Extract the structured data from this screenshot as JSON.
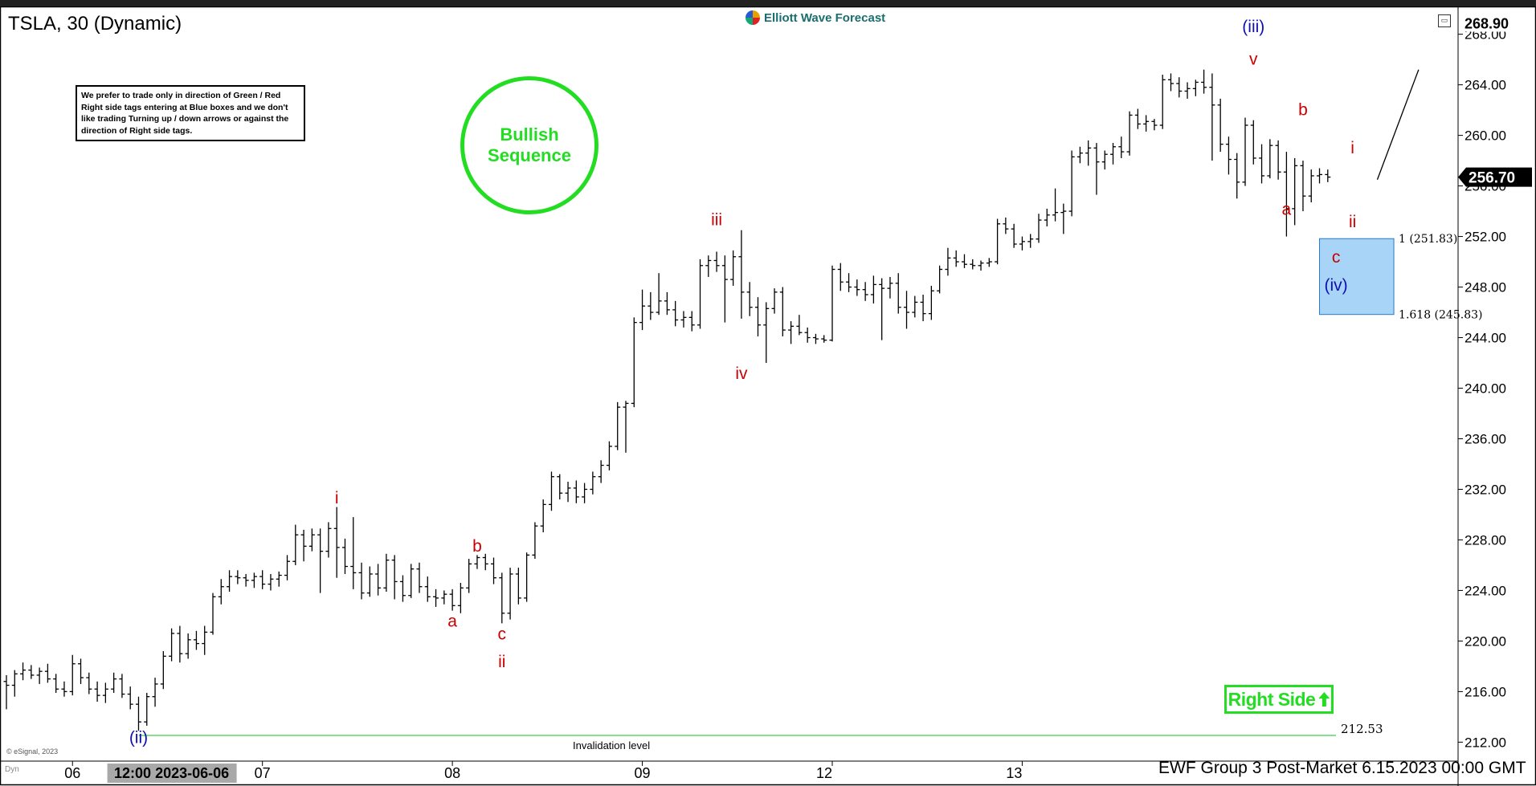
{
  "chart_header": {
    "symbol_title": "TSLA, 30 (Dynamic)",
    "brand": "Elliott Wave Forecast",
    "corner_icon": "restore-icon"
  },
  "notice_box": {
    "text": "We prefer to trade only in direction of Green / Red Right side tags entering at Blue boxes and we don't like trading Turning up / down arrows or against the direction of Right side tags."
  },
  "bullish_badge": {
    "line1": "Bullish",
    "line2": "Sequence",
    "color": "#22dd22"
  },
  "right_side_tag": {
    "label": "Right Side",
    "icon": "arrow-up-icon",
    "color": "#22dd22"
  },
  "footer": {
    "copyright": "© eSignal, 2023",
    "mode": "Dyn",
    "status": "EWF Group 3 Post-Market 6.15.2023 00:00 GMT"
  },
  "chart_data": {
    "type": "ohlc",
    "title": "TSLA, 30 (Dynamic)",
    "ylim": [
      210.5,
      270.2
    ],
    "y_ticks": [
      "212.00",
      "216.00",
      "220.00",
      "224.00",
      "228.00",
      "232.00",
      "236.00",
      "240.00",
      "244.00",
      "248.00",
      "252.00",
      "256.00",
      "260.00",
      "264.00",
      "268.00"
    ],
    "x_ticks": [
      {
        "label": "06",
        "bar": 8
      },
      {
        "label": "07",
        "bar": 31
      },
      {
        "label": "08",
        "bar": 54
      },
      {
        "label": "09",
        "bar": 77
      },
      {
        "label": "12",
        "bar": 100
      },
      {
        "label": "13",
        "bar": 123
      }
    ],
    "x_cursor_label": "12:00 2023-06-06",
    "x_cursor_bar": 20,
    "last_price": "256.70",
    "high_price": "268.90",
    "colors": {
      "bars": "#000000",
      "wave_minor": "#cc0000",
      "wave_major": "#1010b0",
      "invalidation": "#44cc44",
      "box": "#a8d4f8",
      "box_border": "#2a78c8"
    },
    "invalidation": {
      "label": "Invalidation level",
      "value": 212.53,
      "value_label": "212.53"
    },
    "blue_box": {
      "top": 251.83,
      "bottom": 245.83,
      "label_top": "1 (251.83)",
      "label_bottom": "1.618 (245.83)",
      "bar_start": 159,
      "bar_end": 168
    },
    "projection": {
      "from": {
        "bar": 166,
        "value": 256.5
      },
      "to": {
        "bar": 171,
        "value": 265.2
      }
    },
    "wave_labels": [
      {
        "text": "(ii)",
        "bar": 16,
        "value": 213.2,
        "color": "major",
        "pos": "below"
      },
      {
        "text": "i",
        "bar": 40,
        "value": 230.5,
        "color": "minor",
        "pos": "above"
      },
      {
        "text": "a",
        "bar": 54,
        "value": 222.4,
        "color": "minor",
        "pos": "below"
      },
      {
        "text": "b",
        "bar": 57,
        "value": 226.7,
        "color": "minor",
        "pos": "above"
      },
      {
        "text": "c",
        "bar": 60,
        "value": 221.4,
        "color": "minor",
        "pos": "below"
      },
      {
        "text": "ii",
        "bar": 60,
        "value": 219.2,
        "color": "minor",
        "pos": "below"
      },
      {
        "text": "iii",
        "bar": 86,
        "value": 252.5,
        "color": "minor",
        "pos": "above"
      },
      {
        "text": "iv",
        "bar": 89,
        "value": 242.0,
        "color": "minor",
        "pos": "below"
      },
      {
        "text": "v",
        "bar": 151,
        "value": 265.2,
        "color": "minor",
        "pos": "above"
      },
      {
        "text": "(iii)",
        "bar": 151,
        "value": 267.8,
        "color": "major",
        "pos": "above"
      },
      {
        "text": "a",
        "bar": 155,
        "value": 255.0,
        "color": "minor",
        "pos": "below"
      },
      {
        "text": "b",
        "bar": 157,
        "value": 261.2,
        "color": "minor",
        "pos": "above"
      },
      {
        "text": "c",
        "bar": 161,
        "value": 251.2,
        "color": "minor",
        "pos": "below"
      },
      {
        "text": "(iv)",
        "bar": 161,
        "value": 249.0,
        "color": "major",
        "pos": "below"
      },
      {
        "text": "i",
        "bar": 163,
        "value": 258.2,
        "color": "minor",
        "pos": "above"
      },
      {
        "text": "ii",
        "bar": 163,
        "value": 254.0,
        "color": "minor",
        "pos": "below"
      }
    ],
    "ohlc": [
      [
        216.8,
        217.3,
        214.6,
        216.5
      ],
      [
        216.5,
        217.7,
        215.6,
        217.4
      ],
      [
        217.4,
        218.3,
        216.9,
        217.7
      ],
      [
        217.7,
        218.1,
        217.0,
        217.3
      ],
      [
        217.3,
        217.9,
        216.6,
        217.6
      ],
      [
        217.6,
        218.2,
        216.7,
        217.0
      ],
      [
        217.0,
        217.4,
        215.9,
        216.2
      ],
      [
        216.2,
        216.8,
        215.6,
        216.0
      ],
      [
        216.0,
        218.9,
        215.7,
        218.2
      ],
      [
        218.2,
        218.6,
        216.6,
        217.1
      ],
      [
        217.1,
        217.5,
        215.8,
        216.2
      ],
      [
        216.2,
        216.8,
        215.2,
        215.7
      ],
      [
        215.7,
        216.7,
        215.1,
        216.2
      ],
      [
        216.2,
        217.5,
        215.9,
        217.0
      ],
      [
        217.0,
        217.4,
        215.5,
        215.8
      ],
      [
        215.8,
        216.4,
        214.6,
        215.0
      ],
      [
        215.0,
        215.6,
        212.9,
        213.6
      ],
      [
        213.6,
        215.9,
        213.3,
        215.6
      ],
      [
        215.6,
        217.1,
        214.8,
        216.6
      ],
      [
        216.6,
        219.2,
        216.2,
        218.8
      ],
      [
        218.8,
        221.0,
        218.4,
        220.6
      ],
      [
        220.6,
        221.2,
        218.3,
        219.0
      ],
      [
        219.0,
        220.6,
        218.6,
        220.1
      ],
      [
        220.1,
        220.8,
        219.3,
        219.8
      ],
      [
        219.8,
        221.2,
        218.9,
        220.7
      ],
      [
        220.7,
        223.8,
        220.5,
        223.5
      ],
      [
        223.5,
        224.9,
        222.9,
        224.3
      ],
      [
        224.3,
        225.6,
        223.9,
        225.1
      ],
      [
        225.1,
        225.6,
        224.5,
        225.0
      ],
      [
        225.0,
        225.3,
        224.3,
        224.8
      ],
      [
        224.8,
        225.4,
        224.2,
        225.1
      ],
      [
        225.1,
        225.6,
        224.1,
        224.5
      ],
      [
        224.5,
        225.3,
        224.0,
        224.9
      ],
      [
        224.9,
        225.5,
        224.3,
        225.2
      ],
      [
        225.2,
        226.8,
        224.8,
        226.3
      ],
      [
        226.3,
        229.2,
        226.0,
        228.4
      ],
      [
        228.4,
        228.8,
        226.3,
        227.5
      ],
      [
        227.5,
        228.9,
        227.1,
        228.4
      ],
      [
        228.4,
        228.9,
        223.8,
        227.1
      ],
      [
        227.1,
        229.4,
        226.6,
        228.9
      ],
      [
        228.9,
        230.6,
        225.0,
        227.4
      ],
      [
        227.4,
        228.1,
        225.3,
        225.9
      ],
      [
        225.9,
        229.8,
        224.1,
        225.4
      ],
      [
        225.4,
        226.2,
        223.3,
        223.8
      ],
      [
        223.8,
        225.9,
        223.5,
        225.3
      ],
      [
        225.3,
        226.1,
        223.6,
        224.2
      ],
      [
        224.2,
        226.9,
        223.9,
        226.4
      ],
      [
        226.4,
        226.8,
        223.3,
        224.7
      ],
      [
        224.7,
        225.2,
        223.1,
        223.6
      ],
      [
        223.6,
        226.1,
        223.4,
        225.7
      ],
      [
        225.7,
        226.2,
        223.8,
        224.3
      ],
      [
        224.3,
        225.1,
        223.1,
        223.5
      ],
      [
        223.5,
        224.1,
        222.7,
        223.4
      ],
      [
        223.4,
        224.0,
        222.9,
        223.7
      ],
      [
        223.7,
        224.1,
        222.4,
        222.8
      ],
      [
        222.8,
        224.6,
        222.2,
        224.2
      ],
      [
        224.2,
        226.5,
        223.8,
        226.1
      ],
      [
        226.1,
        226.8,
        225.7,
        226.6
      ],
      [
        226.6,
        226.9,
        225.6,
        226.1
      ],
      [
        226.1,
        226.6,
        224.5,
        225.0
      ],
      [
        225.0,
        225.4,
        221.4,
        222.2
      ],
      [
        222.2,
        225.8,
        221.7,
        225.3
      ],
      [
        225.3,
        225.8,
        222.9,
        223.4
      ],
      [
        223.4,
        227.0,
        223.1,
        226.8
      ],
      [
        226.8,
        229.4,
        226.5,
        229.1
      ],
      [
        229.1,
        231.2,
        228.6,
        230.8
      ],
      [
        230.8,
        233.4,
        230.3,
        233.0
      ],
      [
        233.0,
        233.2,
        231.2,
        231.7
      ],
      [
        231.7,
        232.6,
        231.0,
        232.1
      ],
      [
        232.1,
        232.7,
        230.9,
        231.4
      ],
      [
        231.4,
        232.5,
        230.9,
        232.0
      ],
      [
        232.0,
        233.4,
        231.6,
        233.0
      ],
      [
        233.0,
        234.3,
        232.5,
        233.9
      ],
      [
        233.9,
        235.8,
        233.5,
        235.4
      ],
      [
        235.4,
        238.9,
        235.1,
        238.5
      ],
      [
        238.5,
        239.0,
        234.9,
        238.8
      ],
      [
        238.8,
        245.6,
        238.5,
        245.2
      ],
      [
        245.2,
        247.8,
        244.6,
        246.5
      ],
      [
        246.5,
        247.6,
        245.4,
        246.0
      ],
      [
        246.0,
        249.1,
        245.8,
        246.9
      ],
      [
        246.9,
        247.6,
        245.8,
        246.2
      ],
      [
        246.2,
        246.9,
        244.9,
        245.4
      ],
      [
        245.4,
        246.1,
        244.8,
        245.6
      ],
      [
        245.6,
        246.1,
        244.5,
        245.0
      ],
      [
        245.0,
        250.2,
        244.7,
        249.7
      ],
      [
        249.7,
        250.5,
        248.8,
        250.1
      ],
      [
        250.1,
        250.8,
        249.2,
        249.7
      ],
      [
        249.7,
        250.5,
        245.2,
        248.6
      ],
      [
        248.6,
        250.9,
        248.1,
        250.4
      ],
      [
        250.4,
        252.5,
        245.5,
        247.6
      ],
      [
        247.6,
        248.4,
        245.7,
        246.4
      ],
      [
        246.4,
        247.2,
        244.1,
        245.0
      ],
      [
        245.0,
        246.8,
        242.0,
        246.3
      ],
      [
        246.3,
        247.9,
        245.9,
        247.6
      ],
      [
        247.6,
        248.0,
        244.1,
        244.6
      ],
      [
        244.6,
        245.3,
        243.5,
        244.9
      ],
      [
        244.9,
        245.8,
        244.2,
        244.4
      ],
      [
        244.4,
        244.8,
        243.6,
        244.0
      ],
      [
        244.0,
        244.3,
        243.5,
        243.9
      ],
      [
        243.9,
        244.2,
        243.6,
        243.8
      ],
      [
        243.8,
        249.7,
        243.7,
        249.4
      ],
      [
        249.4,
        249.9,
        247.7,
        248.4
      ],
      [
        248.4,
        249.1,
        247.6,
        248.0
      ],
      [
        248.0,
        248.6,
        247.3,
        247.8
      ],
      [
        247.8,
        248.4,
        246.9,
        247.4
      ],
      [
        247.4,
        248.9,
        246.7,
        248.2
      ],
      [
        248.2,
        248.7,
        243.8,
        247.9
      ],
      [
        247.9,
        248.8,
        247.1,
        248.3
      ],
      [
        248.3,
        249.1,
        245.9,
        246.4
      ],
      [
        246.4,
        247.7,
        244.7,
        246.0
      ],
      [
        246.0,
        247.3,
        245.6,
        246.8
      ],
      [
        246.8,
        247.4,
        245.3,
        245.9
      ],
      [
        245.9,
        248.1,
        245.4,
        247.7
      ],
      [
        247.7,
        249.7,
        247.5,
        249.4
      ],
      [
        249.4,
        251.1,
        248.9,
        250.3
      ],
      [
        250.3,
        250.9,
        249.6,
        250.0
      ],
      [
        250.0,
        250.6,
        249.5,
        249.8
      ],
      [
        249.8,
        250.2,
        249.4,
        249.7
      ],
      [
        249.7,
        250.1,
        249.3,
        249.9
      ],
      [
        249.9,
        250.3,
        249.6,
        250.0
      ],
      [
        250.0,
        253.4,
        249.8,
        253.0
      ],
      [
        253.0,
        253.5,
        252.2,
        252.6
      ],
      [
        252.6,
        253.0,
        251.1,
        251.4
      ],
      [
        251.4,
        252.0,
        250.9,
        251.6
      ],
      [
        251.6,
        252.2,
        251.1,
        251.8
      ],
      [
        251.8,
        253.8,
        251.5,
        253.3
      ],
      [
        253.3,
        254.2,
        252.8,
        253.7
      ],
      [
        253.7,
        255.8,
        253.2,
        253.9
      ],
      [
        253.9,
        254.6,
        252.2,
        254.0
      ],
      [
        254.0,
        258.8,
        253.6,
        258.3
      ],
      [
        258.3,
        259.1,
        257.8,
        258.6
      ],
      [
        258.6,
        259.6,
        257.6,
        259.0
      ],
      [
        259.0,
        259.4,
        255.3,
        257.9
      ],
      [
        257.9,
        258.8,
        257.3,
        258.5
      ],
      [
        258.5,
        259.4,
        257.7,
        259.1
      ],
      [
        259.1,
        259.9,
        258.2,
        258.7
      ],
      [
        258.7,
        261.9,
        258.4,
        261.6
      ],
      [
        261.6,
        262.1,
        260.5,
        260.9
      ],
      [
        260.9,
        261.6,
        260.3,
        261.1
      ],
      [
        261.1,
        261.3,
        260.4,
        260.8
      ],
      [
        260.8,
        264.8,
        260.5,
        264.4
      ],
      [
        264.4,
        264.9,
        263.5,
        264.1
      ],
      [
        264.1,
        264.6,
        263.0,
        263.5
      ],
      [
        263.5,
        264.2,
        262.9,
        263.7
      ],
      [
        263.7,
        264.4,
        263.1,
        264.2
      ],
      [
        264.2,
        265.2,
        263.3,
        263.8
      ],
      [
        263.8,
        264.9,
        258.0,
        262.4
      ],
      [
        262.4,
        262.9,
        258.7,
        259.3
      ],
      [
        259.3,
        259.9,
        256.9,
        258.1
      ],
      [
        258.1,
        258.6,
        255.0,
        256.3
      ],
      [
        256.3,
        261.4,
        256.0,
        260.8
      ],
      [
        260.8,
        261.2,
        257.7,
        258.2
      ],
      [
        258.2,
        259.3,
        256.2,
        256.8
      ],
      [
        256.8,
        259.7,
        256.6,
        259.2
      ],
      [
        259.2,
        259.6,
        256.5,
        257.1
      ],
      [
        257.1,
        258.7,
        252.0,
        254.2
      ],
      [
        254.2,
        258.2,
        252.9,
        257.6
      ],
      [
        257.6,
        258.0,
        254.0,
        255.2
      ],
      [
        255.2,
        257.3,
        254.7,
        256.8
      ],
      [
        256.8,
        257.4,
        256.2,
        256.9
      ],
      [
        256.9,
        257.3,
        256.3,
        256.7
      ]
    ]
  }
}
